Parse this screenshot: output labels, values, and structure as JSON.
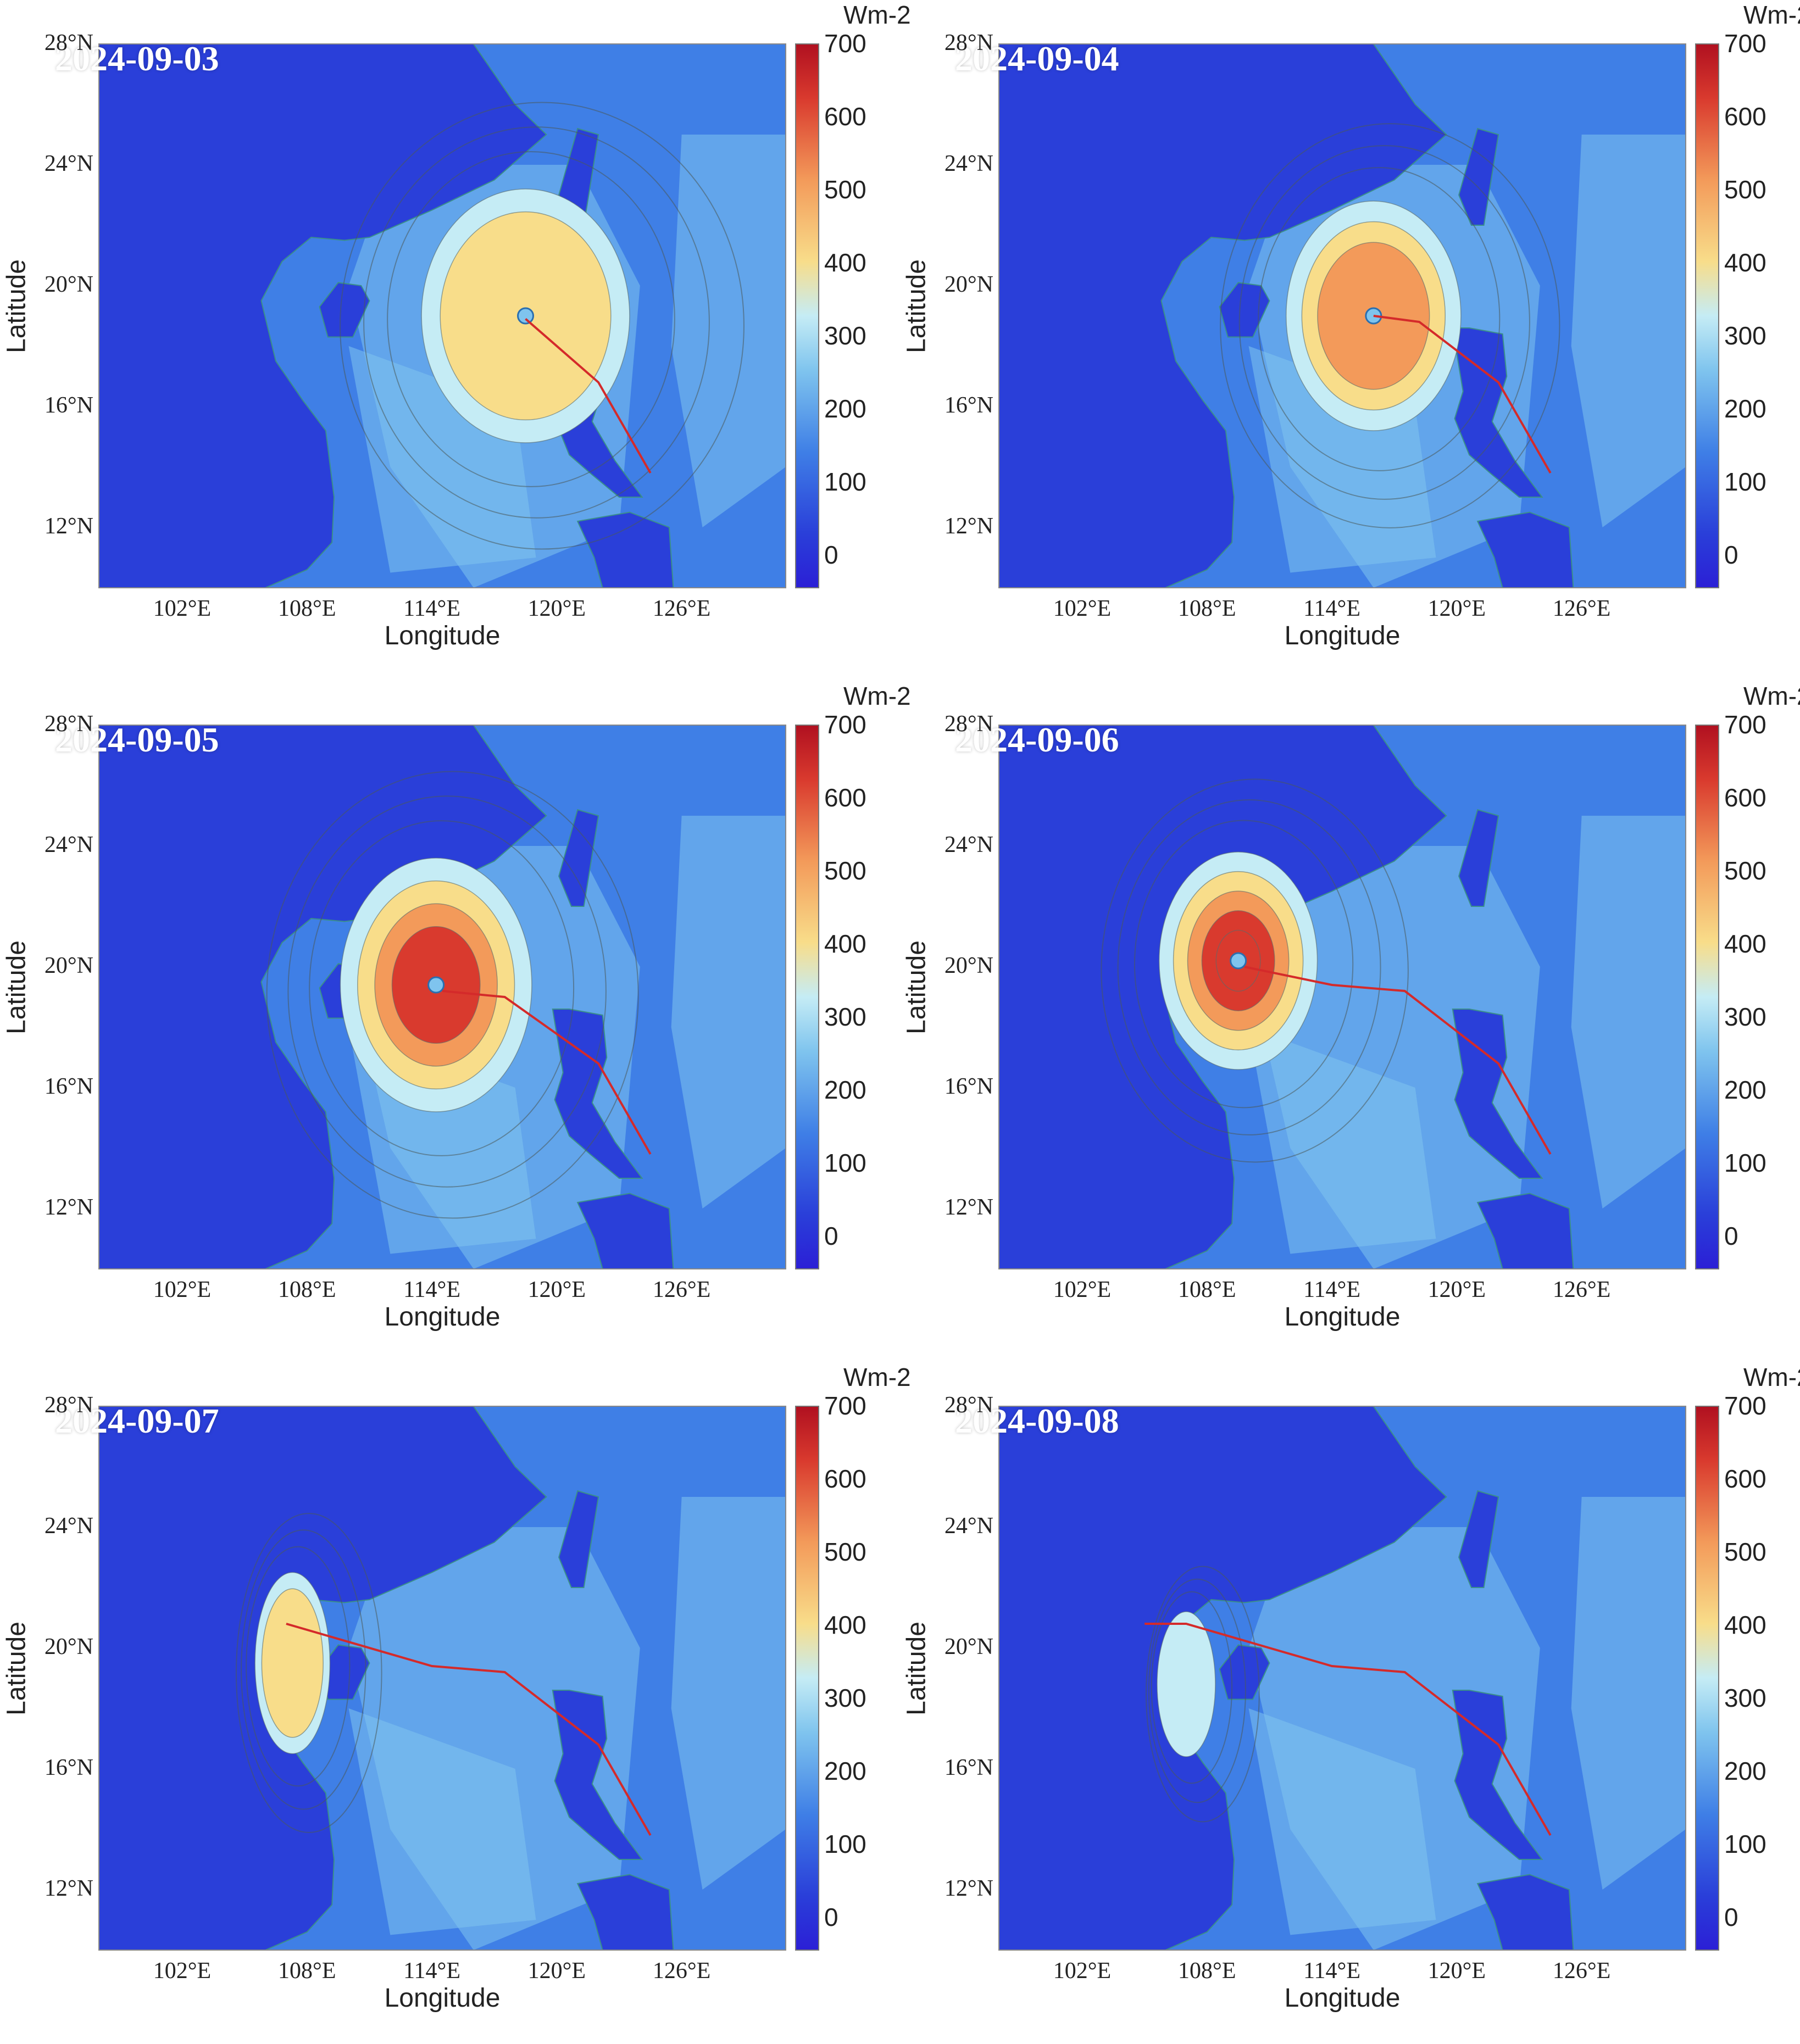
{
  "figure": {
    "units_label": "Wm-2",
    "xlabel": "Longitude",
    "ylabel": "Latitude",
    "colorbar_ticks": [
      "700",
      "600",
      "500",
      "400",
      "300",
      "200",
      "100",
      "0"
    ],
    "lat_ticks": [
      "28°N",
      "24°N",
      "20°N",
      "16°N",
      "12°N"
    ],
    "lon_ticks": [
      "102°E",
      "108°E",
      "114°E",
      "120°E",
      "126°E"
    ],
    "colors": {
      "deep_blue": "#2a3fd9",
      "mid_blue": "#3f7fe6",
      "light_blue": "#7fc4ee",
      "pale_cyan": "#c5ecf5",
      "yellow": "#f8dd8a",
      "orange": "#f39a5a",
      "red": "#d93a2e",
      "track": "#d42a2a"
    }
  },
  "panels": [
    {
      "date": "2024-09-03",
      "track": [
        [
          124.5,
          13.8
        ],
        [
          122.0,
          16.8
        ],
        [
          118.5,
          18.9
        ]
      ],
      "peak_flux": 420
    },
    {
      "date": "2024-09-04",
      "track": [
        [
          124.5,
          13.8
        ],
        [
          122.0,
          16.8
        ],
        [
          118.2,
          18.8
        ],
        [
          116.0,
          19.0
        ]
      ],
      "peak_flux": 520
    },
    {
      "date": "2024-09-05",
      "track": [
        [
          124.5,
          13.8
        ],
        [
          122.0,
          16.8
        ],
        [
          117.5,
          19.0
        ],
        [
          114.5,
          19.2
        ]
      ],
      "peak_flux": 650
    },
    {
      "date": "2024-09-06",
      "track": [
        [
          124.5,
          13.8
        ],
        [
          122.0,
          16.8
        ],
        [
          117.5,
          19.2
        ],
        [
          114.0,
          19.4
        ],
        [
          109.8,
          20.0
        ]
      ],
      "peak_flux": 700
    },
    {
      "date": "2024-09-07",
      "track": [
        [
          124.5,
          13.8
        ],
        [
          122.0,
          16.8
        ],
        [
          117.5,
          19.2
        ],
        [
          114.0,
          19.4
        ],
        [
          107.0,
          20.8
        ]
      ],
      "peak_flux": 380
    },
    {
      "date": "2024-09-08",
      "track": [
        [
          124.5,
          13.8
        ],
        [
          122.0,
          16.8
        ],
        [
          117.5,
          19.2
        ],
        [
          114.0,
          19.4
        ],
        [
          107.0,
          20.8
        ],
        [
          105.0,
          20.8
        ]
      ],
      "peak_flux": 300
    }
  ]
}
